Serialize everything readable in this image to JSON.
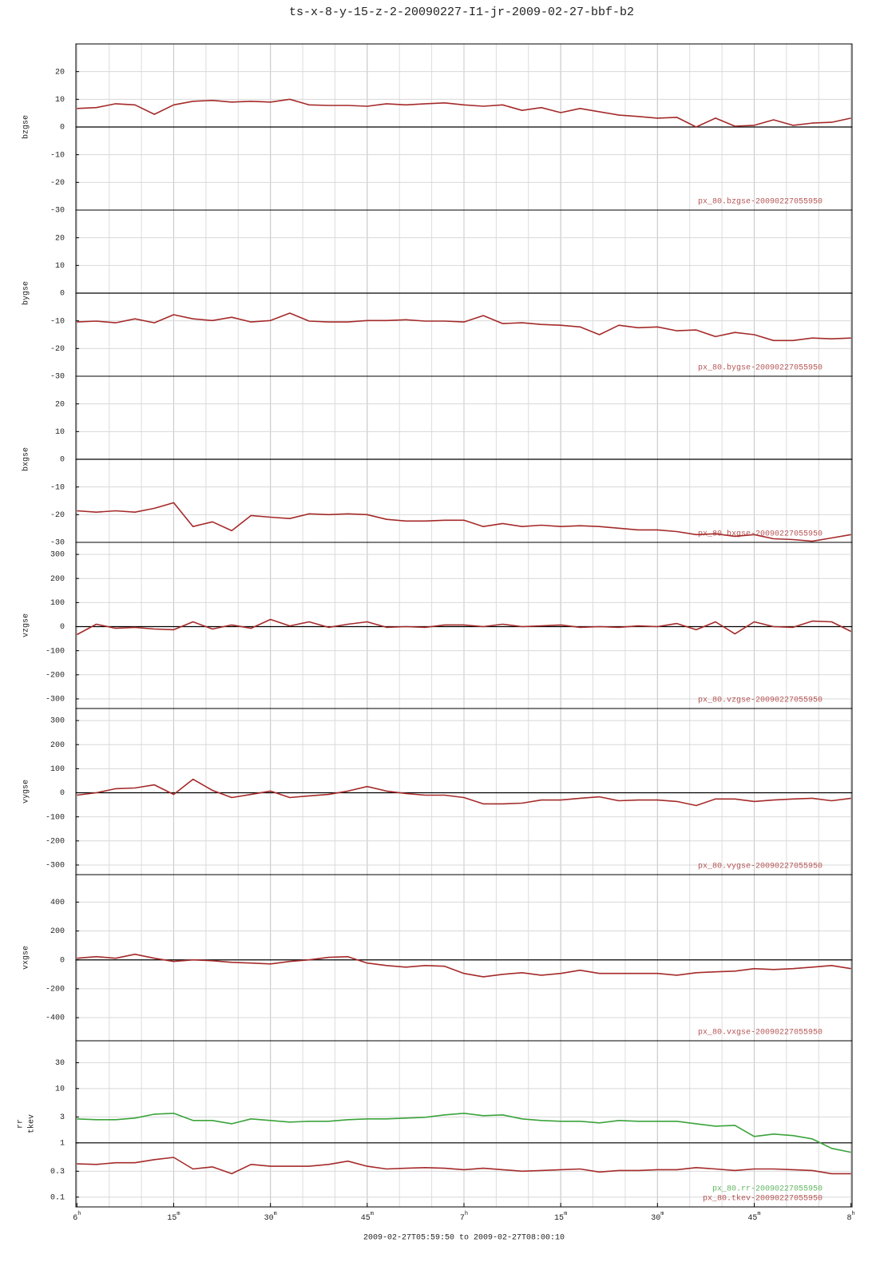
{
  "chart_data": [
    {
      "type": "line",
      "title": "ts-x-8-y-15-z-2-20090227-I1-jr-2009-02-27-bbf-b2",
      "ylabels": [
        "bzgse"
      ],
      "ylim": [
        -30,
        30
      ],
      "yticks": [
        20,
        10,
        0,
        -10,
        -20,
        -30
      ],
      "refline": 0,
      "grid": true,
      "xlim": [
        -0.167,
        120.167
      ],
      "x": [
        0,
        3,
        6,
        9,
        12,
        15,
        18,
        21,
        24,
        27,
        30,
        33,
        36,
        39,
        42,
        45,
        48,
        51,
        54,
        57,
        60,
        63,
        66,
        69,
        72,
        75,
        78,
        81,
        84,
        87,
        90,
        93,
        96,
        99,
        102,
        105,
        108,
        111,
        114,
        117,
        120
      ],
      "series": [
        {
          "name": "px_80.bzgse-20090227055950",
          "color": "#a52a2a",
          "values": [
            6.7,
            7,
            8.4,
            8,
            4.6,
            8,
            9.3,
            9.6,
            9,
            9.3,
            9,
            10,
            8,
            7.8,
            7.8,
            7.5,
            8.4,
            8,
            8.4,
            8.7,
            8,
            7.5,
            8,
            6,
            7,
            5.2,
            6.7,
            5.5,
            4.3,
            3.8,
            3.2,
            3.5,
            0,
            3.2,
            0.3,
            0.6,
            2.6,
            0.6,
            1.4,
            1.7,
            3.2
          ]
        }
      ]
    },
    {
      "type": "line",
      "ylabels": [
        "bygse"
      ],
      "ylim": [
        -30,
        30
      ],
      "yticks": [
        20,
        10,
        0,
        -10,
        -20,
        -30
      ],
      "refline": 0,
      "grid": true,
      "xlim": [
        -0.167,
        120.167
      ],
      "x": [
        0,
        3,
        6,
        9,
        12,
        15,
        18,
        21,
        24,
        27,
        30,
        33,
        36,
        39,
        42,
        45,
        48,
        51,
        54,
        57,
        60,
        63,
        66,
        69,
        72,
        75,
        78,
        81,
        84,
        87,
        90,
        93,
        96,
        99,
        102,
        105,
        108,
        111,
        114,
        117,
        120
      ],
      "series": [
        {
          "name": "px_80.bygse-20090227055950",
          "color": "#a52a2a",
          "values": [
            -10.4,
            -10.1,
            -10.7,
            -9.3,
            -10.7,
            -7.8,
            -9.3,
            -9.9,
            -8.7,
            -10.4,
            -9.9,
            -7.2,
            -10.1,
            -10.4,
            -10.4,
            -9.9,
            -9.9,
            -9.6,
            -10.1,
            -10.1,
            -10.4,
            -8.1,
            -11,
            -10.7,
            -11.3,
            -11.6,
            -12.2,
            -15,
            -11.6,
            -12.5,
            -12.2,
            -13.6,
            -13.3,
            -15.7,
            -14.2,
            -15,
            -17.1,
            -17.1,
            -16.2,
            -16.5,
            -16.2
          ]
        }
      ]
    },
    {
      "type": "line",
      "ylabels": [
        "bxgse"
      ],
      "ylim": [
        -30,
        30
      ],
      "yticks": [
        20,
        10,
        0,
        -10,
        -20,
        -30
      ],
      "refline": 0,
      "grid": true,
      "xlim": [
        -0.167,
        120.167
      ],
      "x": [
        0,
        3,
        6,
        9,
        12,
        15,
        18,
        21,
        24,
        27,
        30,
        33,
        36,
        39,
        42,
        45,
        48,
        51,
        54,
        57,
        60,
        63,
        66,
        69,
        72,
        75,
        78,
        81,
        84,
        87,
        90,
        93,
        96,
        99,
        102,
        105,
        108,
        111,
        114,
        117,
        120
      ],
      "series": [
        {
          "name": "px_80.bxgse-20090227055950",
          "color": "#a52a2a",
          "values": [
            -18.6,
            -19.1,
            -18.6,
            -19.1,
            -17.7,
            -15.7,
            -24.3,
            -22.6,
            -25.8,
            -20.3,
            -20.9,
            -21.4,
            -19.7,
            -20,
            -19.7,
            -20,
            -21.7,
            -22.3,
            -22.3,
            -22,
            -22,
            -24.3,
            -23.2,
            -24.3,
            -23.8,
            -24.3,
            -24,
            -24.3,
            -24.9,
            -25.5,
            -25.5,
            -26.1,
            -27.2,
            -26.9,
            -27.8,
            -27.2,
            -28.7,
            -29,
            -29.6,
            -28.4,
            -27.2
          ]
        }
      ]
    },
    {
      "type": "line",
      "ylabels": [
        "vzgse"
      ],
      "ylim": [
        -340,
        350
      ],
      "yticks": [
        300,
        200,
        100,
        0,
        -100,
        -200,
        -300
      ],
      "refline": 0,
      "grid": true,
      "xlim": [
        -0.167,
        120.167
      ],
      "x": [
        0,
        3,
        6,
        9,
        12,
        15,
        18,
        21,
        24,
        27,
        30,
        33,
        36,
        39,
        42,
        45,
        48,
        51,
        54,
        57,
        60,
        63,
        66,
        69,
        72,
        75,
        78,
        81,
        84,
        87,
        90,
        93,
        96,
        99,
        102,
        105,
        108,
        111,
        114,
        117,
        120
      ],
      "series": [
        {
          "name": "px_80.vzgse-20090227055950",
          "color": "#a52a2a",
          "values": [
            -33,
            10,
            -7,
            -3,
            -10,
            -13,
            20,
            -10,
            7,
            -7,
            30,
            3,
            20,
            -3,
            10,
            20,
            -3,
            0,
            -3,
            7,
            7,
            0,
            10,
            0,
            3,
            7,
            -3,
            0,
            -3,
            3,
            0,
            13,
            -13,
            20,
            -30,
            20,
            0,
            -3,
            23,
            20,
            -20
          ]
        }
      ]
    },
    {
      "type": "line",
      "ylabels": [
        "vygse"
      ],
      "ylim": [
        -340,
        350
      ],
      "yticks": [
        300,
        200,
        100,
        0,
        -100,
        -200,
        -300
      ],
      "refline": 0,
      "grid": true,
      "xlim": [
        -0.167,
        120.167
      ],
      "x": [
        0,
        3,
        6,
        9,
        12,
        15,
        18,
        21,
        24,
        27,
        30,
        33,
        36,
        39,
        42,
        45,
        48,
        51,
        54,
        57,
        60,
        63,
        66,
        69,
        72,
        75,
        78,
        81,
        84,
        87,
        90,
        93,
        96,
        99,
        102,
        105,
        108,
        111,
        114,
        117,
        120
      ],
      "series": [
        {
          "name": "px_80.vygse-20090227055950",
          "color": "#a52a2a",
          "values": [
            -10,
            0,
            17,
            20,
            33,
            -7,
            56,
            10,
            -20,
            -7,
            7,
            -20,
            -13,
            -7,
            7,
            26,
            7,
            -3,
            -10,
            -10,
            -20,
            -46,
            -46,
            -43,
            -30,
            -30,
            -23,
            -17,
            -33,
            -30,
            -30,
            -36,
            -53,
            -26,
            -26,
            -36,
            -30,
            -26,
            -23,
            -33,
            -23
          ]
        }
      ]
    },
    {
      "type": "line",
      "ylabels": [
        "vxgse"
      ],
      "ylim": [
        -560,
        590
      ],
      "yticks": [
        400,
        200,
        0,
        -200,
        -400
      ],
      "refline": 0,
      "grid": true,
      "xlim": [
        -0.167,
        120.167
      ],
      "x": [
        0,
        3,
        6,
        9,
        12,
        15,
        18,
        21,
        24,
        27,
        30,
        33,
        36,
        39,
        42,
        45,
        48,
        51,
        54,
        57,
        60,
        63,
        66,
        69,
        72,
        75,
        78,
        81,
        84,
        87,
        90,
        93,
        96,
        99,
        102,
        105,
        108,
        111,
        114,
        117,
        120
      ],
      "series": [
        {
          "name": "px_80.vxgse-20090227055950",
          "color": "#a52a2a",
          "values": [
            11,
            22,
            11,
            39,
            11,
            -11,
            0,
            -6,
            -17,
            -22,
            -28,
            -11,
            0,
            17,
            22,
            -22,
            -39,
            -50,
            -39,
            -44,
            -94,
            -117,
            -100,
            -89,
            -106,
            -94,
            -72,
            -94,
            -94,
            -94,
            -94,
            -106,
            -89,
            -83,
            -78,
            -61,
            -67,
            -61,
            -50,
            -39,
            -61
          ]
        }
      ]
    },
    {
      "type": "line",
      "ylabels": [
        "rr",
        "tkev"
      ],
      "yscale": "log",
      "ylim": [
        0.066,
        76
      ],
      "yticks": [
        30,
        10,
        3,
        1,
        0.3,
        0.1
      ],
      "refline": 1,
      "grid": true,
      "xlim": [
        -0.167,
        120.167
      ],
      "xlabel": "2009-02-27T05:59:50 to 2009-02-27T08:00:10",
      "minor_grid_step": 5,
      "xticks": [
        {
          "value": 0,
          "label": "6",
          "unit": "h"
        },
        {
          "value": 15,
          "label": "15",
          "unit": "m"
        },
        {
          "value": 30,
          "label": "30",
          "unit": "m"
        },
        {
          "value": 45,
          "label": "45",
          "unit": "m"
        },
        {
          "value": 60,
          "label": "7",
          "unit": "h"
        },
        {
          "value": 75,
          "label": "15",
          "unit": "m"
        },
        {
          "value": 90,
          "label": "30",
          "unit": "m"
        },
        {
          "value": 105,
          "label": "45",
          "unit": "m"
        },
        {
          "value": 120,
          "label": "8",
          "unit": "h"
        }
      ],
      "x": [
        0,
        3,
        6,
        9,
        12,
        15,
        18,
        21,
        24,
        27,
        30,
        33,
        36,
        39,
        42,
        45,
        48,
        51,
        54,
        57,
        60,
        63,
        66,
        69,
        72,
        75,
        78,
        81,
        84,
        87,
        90,
        93,
        96,
        99,
        102,
        105,
        108,
        111,
        114,
        117,
        120
      ],
      "series": [
        {
          "name": "px_80.rr-20090227055950",
          "color": "#3aa33a",
          "values": [
            2.76,
            2.67,
            2.67,
            2.86,
            3.38,
            3.5,
            2.58,
            2.58,
            2.25,
            2.76,
            2.58,
            2.41,
            2.5,
            2.5,
            2.67,
            2.76,
            2.76,
            2.86,
            2.96,
            3.27,
            3.5,
            3.16,
            3.27,
            2.76,
            2.58,
            2.5,
            2.5,
            2.33,
            2.58,
            2.5,
            2.5,
            2.5,
            2.25,
            2.03,
            2.1,
            1.31,
            1.45,
            1.36,
            1.18,
            0.79,
            0.67
          ]
        },
        {
          "name": "px_80.tkev-20090227055950",
          "color": "#a52a2a",
          "values": [
            0.41,
            0.4,
            0.43,
            0.43,
            0.49,
            0.54,
            0.33,
            0.36,
            0.27,
            0.4,
            0.37,
            0.37,
            0.37,
            0.4,
            0.46,
            0.37,
            0.33,
            0.34,
            0.35,
            0.34,
            0.32,
            0.34,
            0.32,
            0.3,
            0.31,
            0.32,
            0.33,
            0.29,
            0.31,
            0.31,
            0.32,
            0.32,
            0.35,
            0.33,
            0.31,
            0.33,
            0.33,
            0.32,
            0.31,
            0.27,
            0.27
          ]
        }
      ]
    }
  ]
}
